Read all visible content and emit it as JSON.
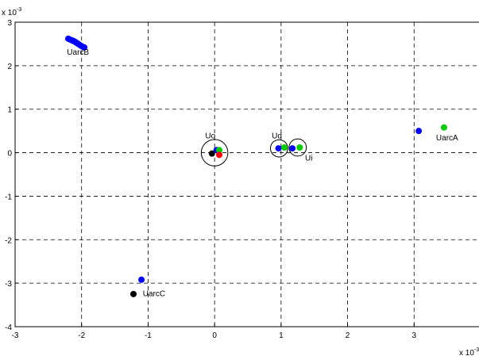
{
  "chart_data": {
    "type": "scatter",
    "title": "",
    "xlabel": "",
    "ylabel": "",
    "x_scale_label": "x 10",
    "y_scale_label": "x 10",
    "scale_exponent": "-3",
    "xlim": [
      -3,
      4
    ],
    "ylim": [
      -4,
      3
    ],
    "x_ticks": [
      "-3",
      "-2",
      "-1",
      "0",
      "1",
      "2",
      "3"
    ],
    "y_ticks": [
      "3",
      "2",
      "1",
      "0",
      "-1",
      "-2",
      "-3",
      "-4"
    ],
    "grid": true,
    "colors": {
      "blue": "#0000ff",
      "green": "#00cc00",
      "red": "#ff0000",
      "black": "#000000"
    },
    "series": [
      {
        "color": "blue",
        "points": [
          [
            -2.2,
            2.62
          ],
          [
            -2.17,
            2.6
          ],
          [
            -2.14,
            2.58
          ],
          [
            -2.11,
            2.56
          ],
          [
            -2.08,
            2.53
          ],
          [
            -2.05,
            2.5
          ],
          [
            -2.02,
            2.47
          ],
          [
            -1.99,
            2.44
          ],
          [
            -1.96,
            2.42
          ],
          [
            0.03,
            0.06
          ],
          [
            0.96,
            0.1
          ],
          [
            1.17,
            0.1
          ],
          [
            3.07,
            0.5
          ],
          [
            -1.1,
            -2.92
          ]
        ]
      },
      {
        "color": "green",
        "points": [
          [
            0.07,
            0.06
          ],
          [
            1.05,
            0.12
          ],
          [
            1.28,
            0.12
          ],
          [
            3.45,
            0.58
          ]
        ]
      },
      {
        "color": "red",
        "points": [
          [
            0.07,
            -0.05
          ]
        ]
      },
      {
        "color": "black",
        "points": [
          [
            -0.04,
            -0.02
          ],
          [
            -1.22,
            -3.25
          ]
        ]
      }
    ],
    "circles": [
      {
        "x": 0.0,
        "y": 0.0,
        "r": 0.2
      },
      {
        "x": 0.97,
        "y": 0.1,
        "r": 0.13
      },
      {
        "x": 1.25,
        "y": 0.12,
        "r": 0.13
      }
    ],
    "annotations": [
      {
        "text": "UarcB",
        "x": -2.22,
        "y": 2.25
      },
      {
        "text": "Uo",
        "x": -0.14,
        "y": 0.33
      },
      {
        "text": "Ud",
        "x": 0.86,
        "y": 0.33
      },
      {
        "text": "Ui",
        "x": 1.36,
        "y": -0.18
      },
      {
        "text": "UarcA",
        "x": 3.33,
        "y": 0.28
      },
      {
        "text": "UarcC",
        "x": -1.08,
        "y": -3.3
      }
    ]
  }
}
